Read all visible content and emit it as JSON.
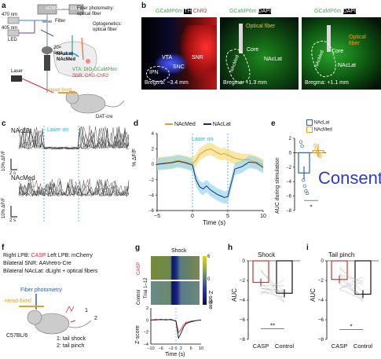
{
  "panels": {
    "a": "a",
    "b": "b",
    "c": "c",
    "d": "d",
    "e": "e",
    "f": "f",
    "g": "g",
    "h": "h",
    "i": "i"
  },
  "colors": {
    "red": "#d03030",
    "orange": "#e8a020",
    "blue": "#3060b0",
    "cyan": "#2cb0d0",
    "green": "#30c040",
    "navy": "#1a2a80"
  },
  "a": {
    "scmos": "sCMOS",
    "daq": "DAQ",
    "nm470": "470 nm",
    "nm405": "405 nm",
    "led": "LED",
    "filter": "Filter",
    "lens": "20×\nlens",
    "fiber_phot": "Fiber photometry:\noptical fiber",
    "opto": "Optogenetics:\noptical fiber",
    "nac": "NAcLat\nNAcMed",
    "vta": "VTA: DIO-GCaMP6m",
    "snr": "SNR: CAG-ChR2",
    "laser": "Laser",
    "headfixed": "Head-fixed",
    "datcre": "DAT-cre"
  },
  "b": {
    "img1_title": [
      "GCaMP6m",
      "TH",
      "ChR2"
    ],
    "img2_title": [
      "GCaMP6m",
      "DAPI"
    ],
    "img3_title": [
      "GCaMP6m",
      "DAPI"
    ],
    "vta": "VTA",
    "snc": "SNC",
    "snr": "SNR",
    "ipn": "IPN",
    "core1": "Core",
    "nacmed": "NAcMed",
    "nacl1": "NAcLat",
    "core2": "Core",
    "nacmed2": "NAcMed",
    "nacl2": "NAcLat",
    "fiber1": "Optical fiber",
    "fiber2": "Optical\nfiber",
    "bregma1": "Bregma: −3.4 mm",
    "bregma2": "Bregma: +1.3 mm",
    "bregma3": "Bregma: +1.1 mm"
  },
  "c": {
    "nacl": "NAcLat",
    "nacmed": "NAcMed",
    "laser": "Laser on",
    "scale_y": "10% ΔF/F",
    "scale_x": "2 s"
  },
  "d": {
    "legend": [
      "NAcMed",
      "NAcLat"
    ],
    "laser": "Laser on",
    "ylabel": "% ΔF/F",
    "xlabel": "Time (s)"
  },
  "e": {
    "legend": [
      "NAcLat",
      "NAcMed"
    ],
    "ylabel": "AUC during stimulation",
    "consent": "Consent",
    "sig": "*"
  },
  "f": {
    "line1": [
      "Right LPB: ",
      "CASP",
      " Left LPB: mCherry"
    ],
    "line2": "Bilateral SNR: AAVretro-Cre",
    "line3": "Bilateral NAcLat: dLight + optical fibers",
    "phot": "Fiber photometry",
    "headfixed": "Head-fixed",
    "mouse": "C57BL/6",
    "n1": "1",
    "n2": "2",
    "legend1": "1: tail shock",
    "legend2": "2: tail pinch"
  },
  "g": {
    "title": "Shock",
    "casp": "CASP",
    "control": "Control",
    "trial": "Trial 1–12",
    "zscore": "Z-score",
    "zlabel": "Z-score",
    "xlabel": "Time (s)"
  },
  "h": {
    "title": "Shock",
    "ylabel": "AUC",
    "cats": [
      "CASP",
      "Control"
    ],
    "sig": "**"
  },
  "i": {
    "title": "Tail pinch",
    "ylabel": "AUC",
    "cats": [
      "CASP",
      "Control"
    ],
    "sig": "*"
  },
  "chart_data": [
    {
      "panel": "c",
      "type": "line",
      "title": "",
      "ylabel": "",
      "xlabel": "",
      "series": [
        {
          "name": "NAcLat"
        },
        {
          "name": "NAcMed"
        }
      ]
    },
    {
      "panel": "d",
      "type": "line",
      "x": [
        -5,
        -4,
        -3,
        -2,
        -1,
        0,
        0.5,
        1,
        1.5,
        2,
        2.5,
        3,
        3.5,
        4,
        4.5,
        5,
        6,
        7,
        8,
        9,
        10
      ],
      "series": [
        {
          "name": "NAcMed",
          "values": [
            0.1,
            0.2,
            0.3,
            0.5,
            0.3,
            0.1,
            0.5,
            1.3,
            1.6,
            1.9,
            2.0,
            1.8,
            1.5,
            1.3,
            1.4,
            1.2,
            0.8,
            0.6,
            0.6,
            0.3,
            -0.1
          ]
        },
        {
          "name": "NAcLat",
          "values": [
            0.0,
            0.1,
            0.2,
            0.4,
            0.2,
            -0.1,
            -2.0,
            -2.9,
            -3.2,
            -2.8,
            -3.3,
            -3.6,
            -3.9,
            -4.1,
            -4.3,
            -4.2,
            -0.6,
            -0.3,
            0.3,
            0.2,
            -0.4
          ]
        }
      ],
      "xlim": [
        -5,
        10
      ],
      "ylim": [
        -6,
        4
      ],
      "xticks": [
        -5,
        0,
        5,
        10
      ],
      "yticks": [
        -6,
        -4,
        -2,
        0,
        2,
        4
      ],
      "ylabel": "% ΔF/F",
      "xlabel": "Time (s)"
    },
    {
      "panel": "e",
      "type": "bar",
      "categories": [
        "NAcLat",
        "NAcMed"
      ],
      "values": [
        -2.8,
        0.3
      ],
      "points": {
        "NAcLat": [
          1.5,
          0.9,
          -3.8,
          -4.6,
          -5.3,
          -5.6
        ],
        "NAcMed": [
          1.0,
          0.5,
          0.1,
          -0.3,
          -0.5
        ]
      },
      "ylim": [
        -8,
        2
      ],
      "yticks": [
        -8,
        -6,
        -4,
        -2,
        0,
        2
      ],
      "ylabel": "AUC during stimulation"
    },
    {
      "panel": "g",
      "type": "line",
      "x": [
        -10,
        -8,
        -6,
        -4,
        -2,
        0,
        1,
        2,
        3,
        4,
        6,
        8,
        10
      ],
      "series": [
        {
          "name": "CASP",
          "values": [
            0,
            0.1,
            0,
            0.1,
            0,
            -0.1,
            -2.1,
            -1.6,
            -0.8,
            -0.4,
            -0.2,
            -0.1,
            0
          ]
        },
        {
          "name": "Control",
          "values": [
            0,
            0,
            0.1,
            0,
            0.1,
            -0.2,
            -3.0,
            -2.2,
            -1.2,
            -0.6,
            -0.3,
            -0.1,
            0
          ]
        }
      ],
      "xlim": [
        -10,
        10
      ],
      "ylim": [
        -4,
        2
      ],
      "xticks": [
        -10,
        -6,
        -2,
        0,
        2,
        6,
        10
      ],
      "yticks": [
        -4,
        -2,
        0,
        2
      ],
      "ylabel": "Z-score",
      "xlabel": "Time (s)",
      "colorbar": [
        -6,
        0,
        6
      ]
    },
    {
      "panel": "h",
      "type": "bar",
      "title": "Shock",
      "categories": [
        "CASP",
        "Control"
      ],
      "values": [
        -2.2,
        -3.3
      ],
      "ylim": [
        -8,
        0
      ],
      "yticks": [
        -8,
        -6,
        -4,
        -2,
        0
      ],
      "ylabel": "AUC"
    },
    {
      "panel": "i",
      "type": "bar",
      "title": "Tail pinch",
      "categories": [
        "CASP",
        "Control"
      ],
      "values": [
        -1.9,
        -3.4
      ],
      "ylim": [
        -8,
        0
      ],
      "yticks": [
        -8,
        -6,
        -4,
        -2,
        0
      ],
      "ylabel": "AUC"
    }
  ]
}
